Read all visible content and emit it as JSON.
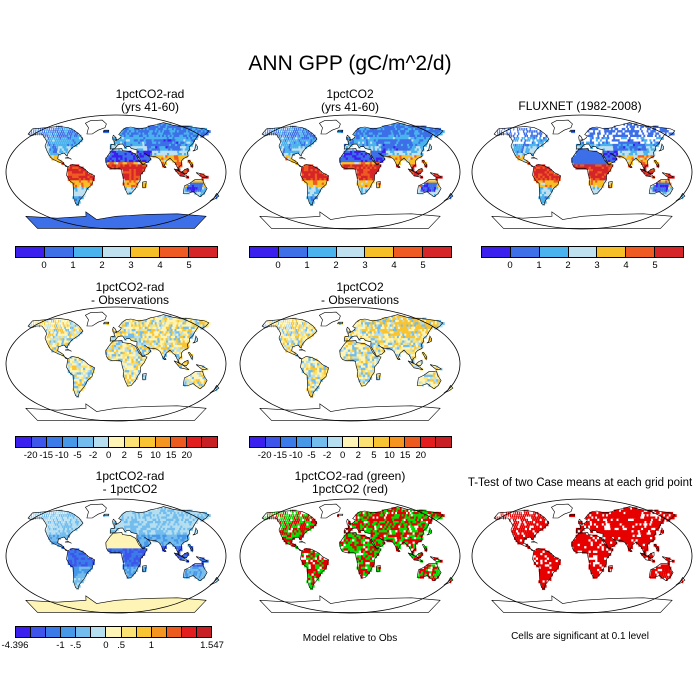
{
  "title": "ANN GPP (gC/m^2/d)",
  "panels": [
    {
      "id": "p1",
      "title": "1pctCO2-rad\n(yrs 41-60)",
      "scheme": "abs"
    },
    {
      "id": "p2",
      "title": "1pctCO2\n(yrs 41-60)",
      "scheme": "abs"
    },
    {
      "id": "p3",
      "title": "FLUXNET (1982-2008)",
      "scheme": "abs"
    },
    {
      "id": "p4",
      "title": "1pctCO2-rad\n- Observations",
      "scheme": "diff"
    },
    {
      "id": "p5",
      "title": "1pctCO2\n- Observations",
      "scheme": "diff"
    },
    {
      "id": "p7",
      "title": "1pctCO2-rad\n- 1pctCO2",
      "scheme": "rel"
    },
    {
      "id": "p8",
      "title": "1pctCO2-rad (green)\n1pctCO2 (red)",
      "scheme": "rg"
    },
    {
      "id": "p9",
      "title": "T-Test of two Case means at each grid point",
      "scheme": "sig"
    }
  ],
  "legends": {
    "abs": {
      "colors": [
        "#3a1fef",
        "#3c6fe8",
        "#4ab2ec",
        "#bfe1ef",
        "#f6bf27",
        "#ee5a21",
        "#d52528"
      ],
      "labels": [
        "0",
        "1",
        "2",
        "3",
        "4",
        "5"
      ]
    },
    "diff": {
      "colors": [
        "#3a1fef",
        "#3d55ea",
        "#3b7ae9",
        "#4898e8",
        "#73bdee",
        "#b5dff1",
        "#fdf4b5",
        "#fbe273",
        "#f9c431",
        "#f5941f",
        "#ec5a1e",
        "#e31d1e",
        "#c81f24"
      ],
      "labels": [
        "-20",
        "-15",
        "-10",
        "-5",
        "-2",
        "0",
        "2",
        "5",
        "10",
        "15",
        "20"
      ]
    },
    "rel": {
      "colors": [
        "#3a1fef",
        "#3d55ea",
        "#3b7ae9",
        "#4898e8",
        "#73bdee",
        "#b5dff1",
        "#fdf4b5",
        "#fbe273",
        "#f9c431",
        "#f5941f",
        "#ec5a1e",
        "#e31d1e",
        "#c81f24"
      ],
      "labels": [
        "-4.396",
        "-1",
        "-.5",
        "0",
        ".5",
        "1",
        "1.547"
      ]
    }
  },
  "notes": {
    "model_relative": "Model relative to Obs",
    "significance": "Cells are significant at 0.1 level"
  }
}
